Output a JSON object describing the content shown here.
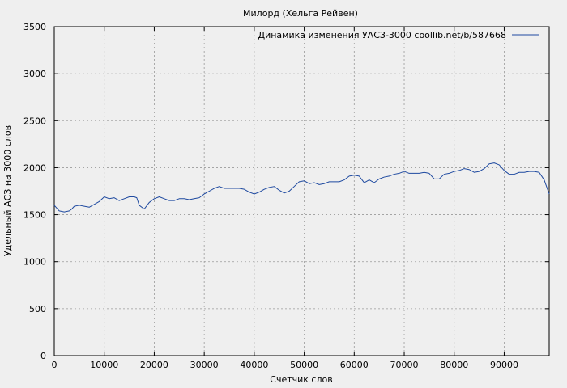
{
  "chart_data": {
    "type": "line",
    "title": "Милорд (Хельга Рейвен)",
    "xlabel": "Счетчик слов",
    "ylabel": "Удельный АСЗ на 3000 слов",
    "xlim": [
      0,
      99000
    ],
    "ylim": [
      0,
      3500
    ],
    "xticks": [
      0,
      10000,
      20000,
      30000,
      40000,
      50000,
      60000,
      70000,
      80000,
      90000
    ],
    "yticks": [
      0,
      500,
      1000,
      1500,
      2000,
      2500,
      3000,
      3500
    ],
    "grid": true,
    "legend_position": "top-right",
    "series": [
      {
        "name": "Динамика изменения УАСЗ-3000 coollib.net/b/587668",
        "color": "#1f4aa0",
        "x": [
          0,
          1000,
          2000,
          3000,
          3500,
          4000,
          5000,
          6000,
          7000,
          8000,
          9000,
          10000,
          11000,
          12000,
          13000,
          14000,
          15000,
          16000,
          16500,
          17000,
          18000,
          19000,
          20000,
          21000,
          22000,
          23000,
          24000,
          25000,
          26000,
          27000,
          28000,
          29000,
          30000,
          31000,
          32000,
          33000,
          34000,
          35000,
          36000,
          37000,
          38000,
          39000,
          40000,
          41000,
          42000,
          43000,
          44000,
          45000,
          46000,
          47000,
          48000,
          49000,
          50000,
          51000,
          52000,
          53000,
          54000,
          55000,
          56000,
          57000,
          58000,
          59000,
          60000,
          61000,
          62000,
          63000,
          64000,
          65000,
          66000,
          67000,
          68000,
          69000,
          70000,
          71000,
          72000,
          73000,
          74000,
          75000,
          76000,
          77000,
          78000,
          79000,
          80000,
          81000,
          82000,
          83000,
          84000,
          85000,
          86000,
          87000,
          88000,
          89000,
          90000,
          91000,
          92000,
          93000,
          94000,
          95000,
          96000,
          97000,
          98000,
          99000
        ],
        "y": [
          1600,
          1540,
          1530,
          1540,
          1560,
          1590,
          1600,
          1590,
          1580,
          1610,
          1640,
          1690,
          1670,
          1680,
          1650,
          1670,
          1690,
          1690,
          1680,
          1600,
          1560,
          1630,
          1670,
          1690,
          1670,
          1650,
          1650,
          1670,
          1670,
          1660,
          1670,
          1680,
          1720,
          1750,
          1780,
          1800,
          1780,
          1780,
          1780,
          1780,
          1770,
          1740,
          1720,
          1740,
          1770,
          1790,
          1800,
          1760,
          1730,
          1750,
          1800,
          1850,
          1860,
          1830,
          1840,
          1820,
          1830,
          1850,
          1850,
          1850,
          1870,
          1910,
          1920,
          1910,
          1840,
          1870,
          1840,
          1880,
          1900,
          1910,
          1930,
          1940,
          1960,
          1940,
          1940,
          1940,
          1950,
          1940,
          1880,
          1880,
          1930,
          1940,
          1960,
          1970,
          1990,
          1980,
          1950,
          1960,
          1990,
          2040,
          2050,
          2030,
          1970,
          1930,
          1930,
          1950,
          1950,
          1960,
          1960,
          1950,
          1870,
          1720
        ]
      }
    ]
  }
}
